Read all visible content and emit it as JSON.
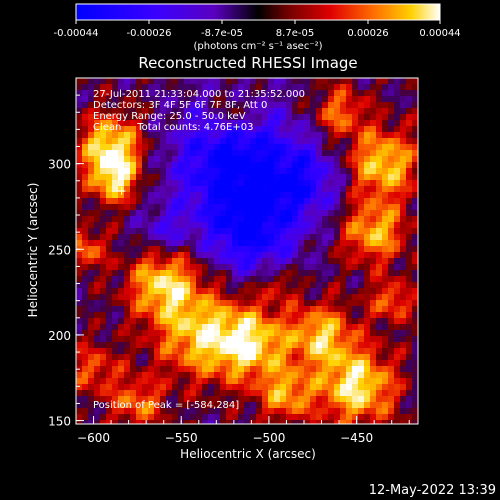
{
  "colorbar": {
    "ticks": [
      "-0.00044",
      "-0.00026",
      "-8.7e-05",
      "8.7e-05",
      "0.00026",
      "0.00044"
    ],
    "unit_label": "(photons cm⁻² s⁻¹ asec⁻²)",
    "range": [
      -0.00044,
      0.00044
    ]
  },
  "chart_data": {
    "type": "heatmap",
    "title": "Reconstructed RHESSI Image",
    "xlabel": "Heliocentric X (arcsec)",
    "ylabel": "Heliocentric Y (arcsec)",
    "xlim": [
      -610,
      -415
    ],
    "ylim": [
      148,
      350
    ],
    "x_ticks": [
      -600,
      -550,
      -500,
      -450
    ],
    "y_ticks": [
      150,
      200,
      250,
      300
    ],
    "annotations": [
      "27-Jul-2011 21:33:04.000 to 21:35:52.000",
      "Detectors: 3F 4F 5F 6F 7F 8F, Att 0",
      "Energy Range: 25.0 - 50.0 keV",
      "Clean     Total counts: 4.76E+03"
    ],
    "peak_label": "Position of Peak = [-584,284]",
    "peak": [
      -584,
      284
    ]
  },
  "footer": {
    "timestamp": "12-May-2022 13:39"
  }
}
